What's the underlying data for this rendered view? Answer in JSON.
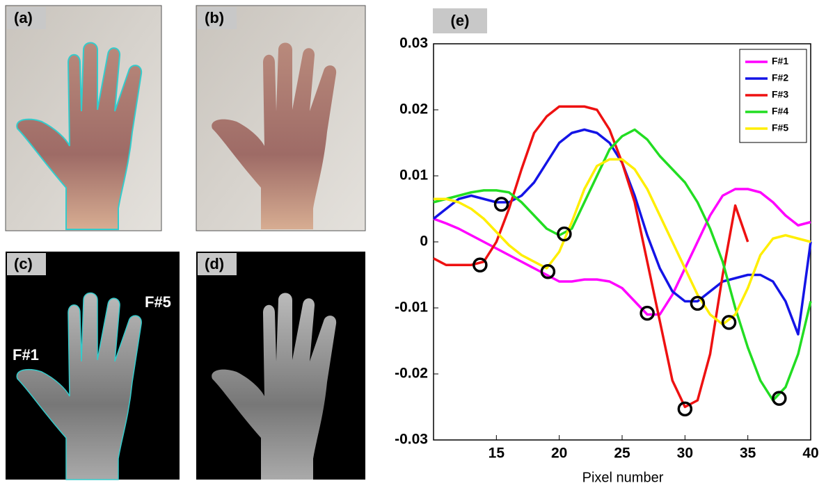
{
  "panels": [
    "(a)",
    "(b)",
    "(c)",
    "(d)"
  ],
  "annotations": [
    "F#1",
    "F#5"
  ],
  "chart_data": {
    "type": "line",
    "title": "(e)",
    "x_label": "Pixel number",
    "x": [
      10,
      11,
      12,
      13,
      14,
      15,
      16,
      17,
      18,
      19,
      20,
      21,
      22,
      23,
      24,
      25,
      26,
      27,
      28,
      29,
      30,
      31,
      32,
      33,
      34,
      35,
      36,
      37,
      38,
      39,
      40
    ],
    "series": [
      {
        "name": "F#1",
        "color": "#ff00ff",
        "values": [
          0.0035,
          0.0028,
          0.002,
          0.001,
          0.0,
          -0.001,
          -0.002,
          -0.003,
          -0.004,
          -0.005,
          -0.006,
          -0.006,
          -0.0057,
          -0.0057,
          -0.006,
          -0.007,
          -0.009,
          -0.011,
          -0.011,
          -0.008,
          -0.004,
          0.0,
          0.004,
          0.007,
          0.008,
          0.008,
          0.0075,
          0.006,
          0.004,
          0.0025,
          0.003
        ]
      },
      {
        "name": "F#2",
        "color": "#1414e6",
        "values": [
          0.0035,
          0.005,
          0.0065,
          0.007,
          0.0065,
          0.006,
          0.006,
          0.007,
          0.009,
          0.012,
          0.015,
          0.0165,
          0.017,
          0.0165,
          0.015,
          0.012,
          0.007,
          0.001,
          -0.004,
          -0.0075,
          -0.009,
          -0.009,
          -0.0075,
          -0.006,
          -0.0055,
          -0.005,
          -0.005,
          -0.006,
          -0.009,
          -0.014,
          0.0
        ]
      },
      {
        "name": "F#3",
        "color": "#ee1111",
        "values": [
          -0.0025,
          -0.0035,
          -0.0035,
          -0.0035,
          -0.003,
          0.0,
          0.005,
          0.011,
          0.0165,
          0.019,
          0.0205,
          0.0205,
          0.0205,
          0.02,
          0.017,
          0.012,
          0.006,
          -0.003,
          -0.012,
          -0.021,
          -0.025,
          -0.024,
          -0.017,
          -0.005,
          0.0055,
          0.0,
          null,
          null,
          null,
          null,
          null
        ]
      },
      {
        "name": "F#4",
        "color": "#22dd22",
        "values": [
          0.006,
          0.0065,
          0.007,
          0.0075,
          0.0078,
          0.0078,
          0.0075,
          0.006,
          0.004,
          0.002,
          0.001,
          0.002,
          0.006,
          0.01,
          0.014,
          0.016,
          0.017,
          0.0155,
          0.013,
          0.011,
          0.009,
          0.006,
          0.002,
          -0.003,
          -0.01,
          -0.016,
          -0.021,
          -0.024,
          -0.022,
          -0.017,
          -0.009
        ]
      },
      {
        "name": "F#5",
        "color": "#ffee00",
        "values": [
          0.0065,
          0.0065,
          0.006,
          0.005,
          0.0035,
          0.0015,
          -0.0005,
          -0.002,
          -0.003,
          -0.004,
          -0.0015,
          0.003,
          0.008,
          0.0115,
          0.0125,
          0.0125,
          0.011,
          0.008,
          0.004,
          0.0,
          -0.004,
          -0.008,
          -0.011,
          -0.0125,
          -0.011,
          -0.007,
          -0.002,
          0.0005,
          0.001,
          0.0005,
          0.0
        ]
      }
    ],
    "circles": {
      "x": [
        13.7,
        15.4,
        19.1,
        20.4,
        27,
        30,
        31,
        33.5,
        37.5
      ],
      "values": [
        -0.0035,
        0.0057,
        -0.0045,
        0.0012,
        -0.0108,
        -0.0253,
        -0.0093,
        -0.0122,
        -0.0237
      ]
    },
    "xlim": [
      10,
      40
    ],
    "xticks": [
      15,
      20,
      25,
      30,
      35,
      40
    ],
    "ylim": [
      -0.03,
      0.03
    ],
    "yticks": [
      -0.03,
      -0.02,
      -0.01,
      0,
      0.01,
      0.02,
      0.03
    ],
    "legend": "upper-right"
  }
}
